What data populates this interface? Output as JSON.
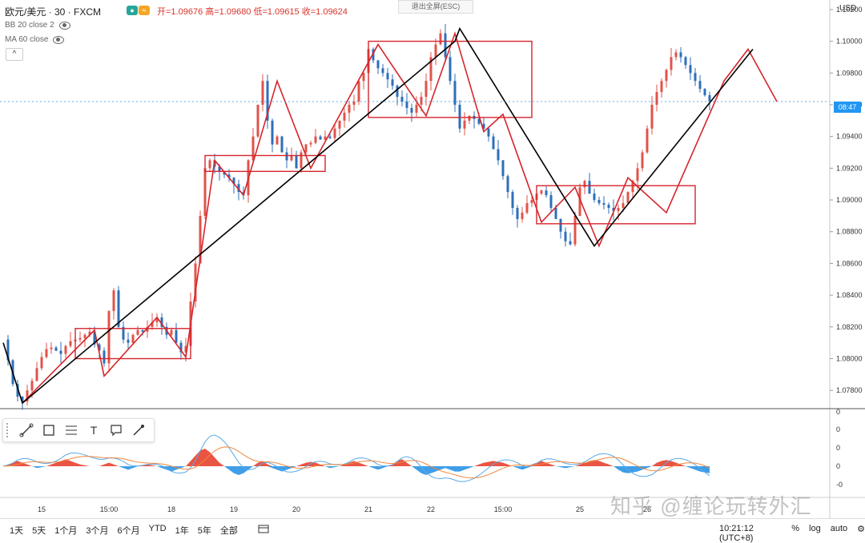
{
  "header": {
    "title": "欧元/美元 · 30 · FXCM",
    "ohlc": "开=1.09676 高=1.09680 低=1.09615 收=1.09624",
    "indicators": [
      "BB 20 close 2",
      "MA 60 close"
    ],
    "fullscreen_exit": "退出全屏(ESC)"
  },
  "axis": {
    "currency": "USD",
    "current_price_label": "08:47",
    "y_ticks": [
      "1.10200",
      "1.10000",
      "1.09800",
      "1.09600",
      "1.09400",
      "1.09200",
      "1.09000",
      "1.08800",
      "1.08600",
      "1.08400",
      "1.08200",
      "1.08000",
      "1.07800"
    ],
    "macd_ticks": [
      "0",
      "0",
      "0",
      "0",
      "-0",
      "0"
    ],
    "x_ticks": [
      "15",
      "15:00",
      "18",
      "19",
      "20",
      "21",
      "22",
      "15:00",
      "25",
      "26"
    ]
  },
  "toolbar": {
    "tools": [
      "line-tool",
      "rectangle-tool",
      "fib-tool",
      "text-tool",
      "callout-tool",
      "brush-tool"
    ],
    "text_label": "T"
  },
  "bottom": {
    "ranges": [
      "1天",
      "5天",
      "1个月",
      "3个月",
      "6个月",
      "YTD",
      "1年",
      "5年",
      "全部"
    ],
    "clock": "10:21:12 (UTC+8)",
    "pct": "%",
    "log": "log",
    "auto": "auto"
  },
  "watermark": "知乎 @缠论玩转外汇",
  "colors": {
    "up": "#e0534a",
    "down": "#2e6fb8",
    "structure": "#d6252c",
    "trend": "#000000",
    "macd_pos": "#e8412f",
    "macd_neg": "#2b93e6",
    "dif": "#5aa9e6",
    "dea": "#f0883e"
  },
  "chart_data": {
    "type": "line",
    "symbol": "EURUSD",
    "timeframe": "30",
    "ylim": [
      1.077,
      1.1025
    ],
    "x_index_range": [
      0,
      100
    ],
    "x_tick_positions": [
      8,
      22,
      35,
      48,
      61,
      76,
      89,
      104,
      120,
      134
    ],
    "trend_pivots": [
      {
        "x": 0,
        "y": 1.081
      },
      {
        "x": 4,
        "y": 1.0772
      },
      {
        "x": 94,
        "y": 1.1
      },
      {
        "x": 95,
        "y": 1.1008
      },
      {
        "x": 123,
        "y": 1.0871
      },
      {
        "x": 156,
        "y": 1.0995
      }
    ],
    "structure_pivots": [
      {
        "x": 4,
        "y": 1.0772
      },
      {
        "x": 19,
        "y": 1.0818
      },
      {
        "x": 21,
        "y": 1.0789
      },
      {
        "x": 32,
        "y": 1.0826
      },
      {
        "x": 38,
        "y": 1.0801
      },
      {
        "x": 44,
        "y": 1.0925
      },
      {
        "x": 50,
        "y": 1.0903
      },
      {
        "x": 57,
        "y": 1.0975
      },
      {
        "x": 64,
        "y": 1.092
      },
      {
        "x": 78,
        "y": 1.0998
      },
      {
        "x": 88,
        "y": 1.0953
      },
      {
        "x": 94,
        "y": 1.1005
      },
      {
        "x": 100,
        "y": 1.0943
      },
      {
        "x": 104,
        "y": 1.0954
      },
      {
        "x": 112,
        "y": 1.0886
      },
      {
        "x": 119,
        "y": 1.0908
      },
      {
        "x": 124,
        "y": 1.0871
      },
      {
        "x": 130,
        "y": 1.0914
      },
      {
        "x": 138,
        "y": 1.0892
      },
      {
        "x": 150,
        "y": 1.0975
      },
      {
        "x": 155,
        "y": 1.0995
      },
      {
        "x": 161,
        "y": 1.0962
      }
    ],
    "boxes": [
      {
        "x0": 15,
        "x1": 39,
        "y0": 1.08,
        "y1": 1.0819
      },
      {
        "x0": 42,
        "x1": 67,
        "y0": 1.0918,
        "y1": 1.0928
      },
      {
        "x0": 76,
        "x1": 110,
        "y0": 1.0952,
        "y1": 1.1
      },
      {
        "x0": 111,
        "x1": 144,
        "y0": 1.0885,
        "y1": 1.0909
      }
    ],
    "series_close": [
      1.0812,
      1.0799,
      1.0784,
      1.0776,
      1.0773,
      1.078,
      1.0786,
      1.0794,
      1.0801,
      1.0806,
      1.0807,
      1.0805,
      1.0803,
      1.0808,
      1.0811,
      1.0812,
      1.0813,
      1.0815,
      1.0817,
      1.0809,
      1.0805,
      1.0797,
      1.083,
      1.0843,
      1.082,
      1.0812,
      1.081,
      1.0815,
      1.0818,
      1.0817,
      1.082,
      1.0823,
      1.0826,
      1.082,
      1.0815,
      1.0818,
      1.081,
      1.0804,
      1.0808,
      1.0836,
      1.086,
      1.089,
      1.092,
      1.0925,
      1.0921,
      1.0918,
      1.0916,
      1.0914,
      1.091,
      1.0905,
      1.0903,
      1.0925,
      1.094,
      1.096,
      1.0975,
      1.095,
      1.0935,
      1.094,
      1.093,
      1.0925,
      1.0928,
      1.092,
      1.093,
      1.0935,
      1.0936,
      1.094,
      1.0938,
      1.094,
      1.0939,
      1.0945,
      1.095,
      1.0955,
      1.096,
      1.0962,
      1.0975,
      1.098,
      1.0995,
      1.0988,
      1.0983,
      1.098,
      1.0976,
      1.0972,
      1.0965,
      1.0962,
      1.0958,
      1.0955,
      1.096,
      1.0965,
      1.0975,
      1.099,
      1.0998,
      1.1005,
      1.099,
      1.0975,
      1.096,
      1.0945,
      1.095,
      1.0953,
      1.0951,
      1.0948,
      1.0945,
      1.094,
      1.0932,
      1.0925,
      1.0915,
      1.0905,
      1.0895,
      1.0888,
      1.0892,
      1.0898,
      1.09,
      1.0904,
      1.0906,
      1.0903,
      1.0895,
      1.0888,
      1.088,
      1.0874,
      1.0872,
      1.089,
      1.0908,
      1.0912,
      1.0904,
      1.09,
      1.0898,
      1.0897,
      1.0895,
      1.0893,
      1.0895,
      1.0898,
      1.0905,
      1.0912,
      1.092,
      1.093,
      1.0945,
      1.096,
      1.0968,
      1.0975,
      1.0982,
      1.099,
      1.0993,
      1.099,
      1.0985,
      1.098,
      1.0975,
      1.097,
      1.0966,
      1.0962
    ],
    "macd_hist_shape": [
      0,
      0.1,
      0.2,
      0.3,
      0.2,
      0.1,
      0,
      -0.1,
      -0.05,
      0,
      0.1,
      0.2,
      0.3,
      0.4,
      0.3,
      0.2,
      0.1,
      0.05,
      0,
      0,
      0,
      0.1,
      0.2,
      0.1,
      0,
      -0.1,
      -0.2,
      -0.1,
      0,
      0.05,
      0.1,
      0.05,
      0,
      -0.1,
      -0.2,
      -0.3,
      -0.2,
      -0.1,
      0,
      0.3,
      0.6,
      0.9,
      1.0,
      0.8,
      0.5,
      0.2,
      0,
      -0.2,
      -0.4,
      -0.5,
      -0.4,
      -0.2,
      0,
      0.2,
      0.3,
      0.1,
      -0.1,
      -0.2,
      -0.3,
      -0.2,
      -0.1,
      0,
      0.1,
      0.2,
      0.25,
      0.2,
      0.1,
      0,
      -0.1,
      -0.05,
      0,
      0.1,
      0.2,
      0.3,
      0.2,
      0.1,
      0,
      -0.1,
      -0.2,
      -0.1,
      0,
      0.1,
      0.3,
      0.4,
      0.2,
      0,
      -0.2,
      -0.4,
      -0.5,
      -0.4,
      -0.3,
      -0.2,
      -0.1,
      -0.2,
      -0.3,
      -0.3,
      -0.2,
      -0.1,
      0,
      0.1,
      0.2,
      0.25,
      0.3,
      0.25,
      0.2,
      0.1,
      0,
      -0.1,
      -0.2,
      -0.1,
      0.1,
      0.2,
      0.3,
      0.2,
      0.1,
      0,
      -0.05,
      -0.1,
      -0.05,
      0,
      0.1,
      0.2,
      0.3,
      0.35,
      0.3,
      0.2,
      0.1,
      0,
      -0.2,
      -0.35,
      -0.4,
      -0.35,
      -0.3,
      -0.2,
      -0.1,
      0,
      0.2,
      0.3,
      0.35,
      0.3,
      0.2,
      0.1,
      0,
      -0.1,
      -0.2,
      -0.3,
      -0.35,
      -0.4
    ]
  }
}
